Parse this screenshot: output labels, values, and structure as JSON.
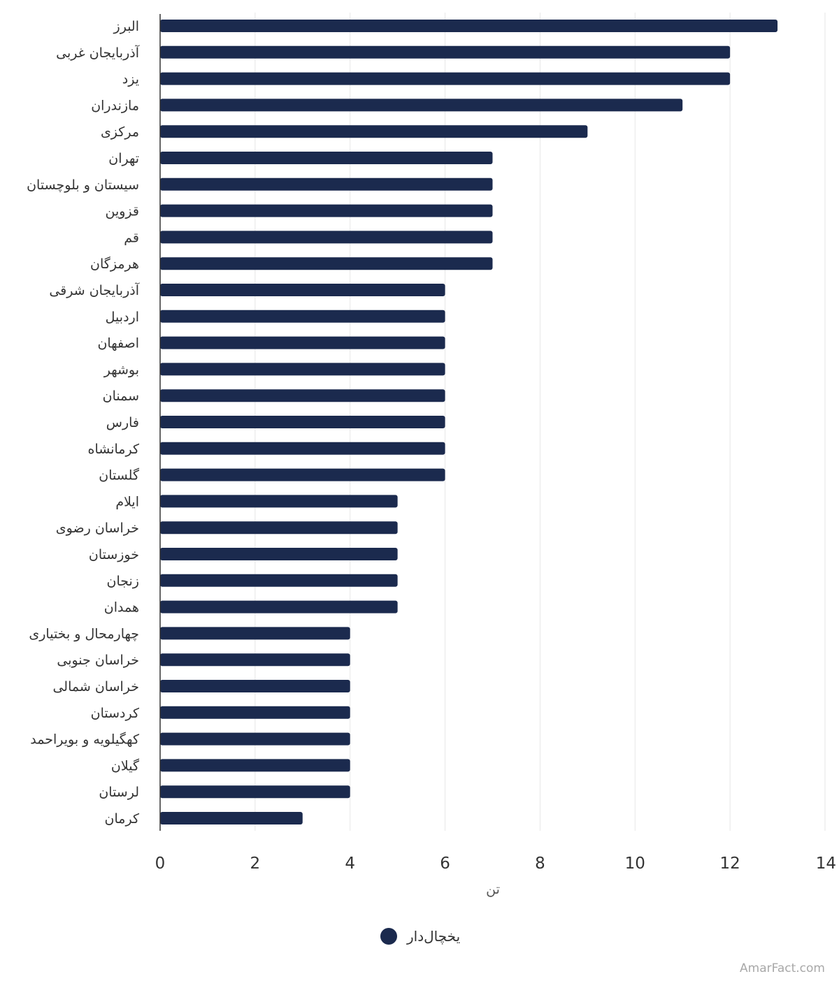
{
  "chart_data": {
    "type": "bar",
    "orientation": "horizontal",
    "categories": [
      "البرز",
      "آذربایجان غربی",
      "یزد",
      "مازندران",
      "مرکزی",
      "تهران",
      "سیستان و بلوچستان",
      "قزوین",
      "قم",
      "هرمزگان",
      "آذربایجان شرقی",
      "اردبیل",
      "اصفهان",
      "بوشهر",
      "سمنان",
      "فارس",
      "کرمانشاه",
      "گلستان",
      "ایلام",
      "خراسان رضوی",
      "خوزستان",
      "زنجان",
      "همدان",
      "چهارمحال و بختیاری",
      "خراسان جنوبی",
      "خراسان شمالی",
      "کردستان",
      "کهگیلویه و بویراحمد",
      "گیلان",
      "لرستان",
      "کرمان"
    ],
    "series": [
      {
        "name": "یخچال‌دار",
        "color": "#1b2a4e",
        "values": [
          13,
          12,
          12,
          11,
          9,
          7,
          7,
          7,
          7,
          7,
          6,
          6,
          6,
          6,
          6,
          6,
          6,
          6,
          5,
          5,
          5,
          5,
          5,
          4,
          4,
          4,
          4,
          4,
          4,
          4,
          3
        ]
      }
    ],
    "xlabel": "تن",
    "xlim": [
      0,
      14
    ],
    "xticks": [
      0,
      2,
      4,
      6,
      8,
      10,
      12,
      14
    ],
    "grid": true,
    "legend_position": "bottom-center"
  },
  "credit": "AmarFact.com",
  "colors": {
    "bar": "#1b2a4e",
    "grid": "#e6e6e6",
    "axis": "#333333"
  }
}
